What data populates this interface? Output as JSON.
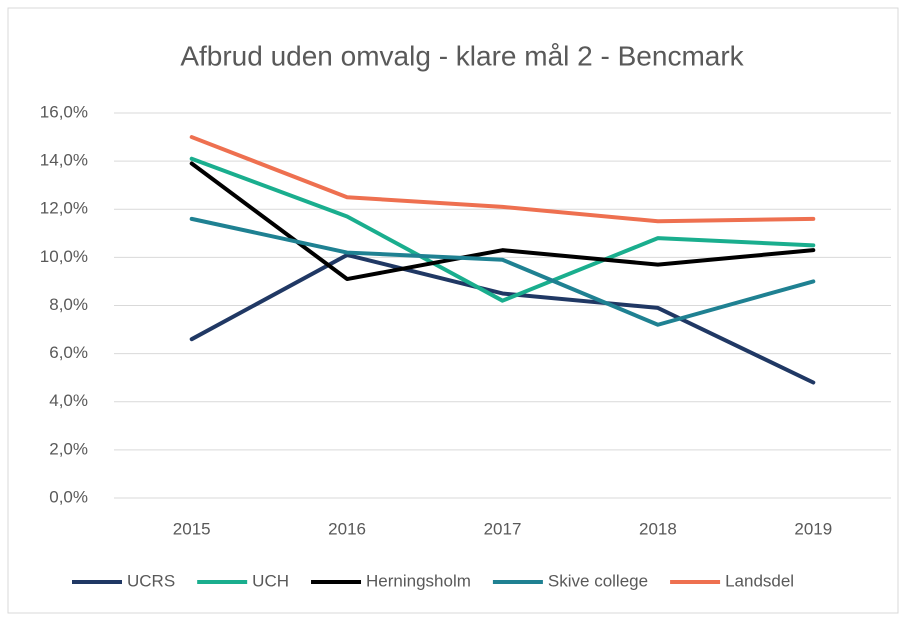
{
  "chart_data": {
    "type": "line",
    "title": "Afbrud uden omvalg - klare mål 2 - Bencmark",
    "categories": [
      "2015",
      "2016",
      "2017",
      "2018",
      "2019"
    ],
    "series": [
      {
        "name": "UCRS",
        "color": "#203864",
        "values": [
          6.6,
          10.1,
          8.5,
          7.9,
          4.8
        ]
      },
      {
        "name": "UCH",
        "color": "#1aae8e",
        "values": [
          14.1,
          11.7,
          8.2,
          10.8,
          10.5
        ]
      },
      {
        "name": "Herningsholm",
        "color": "#000000",
        "values": [
          13.9,
          9.1,
          10.3,
          9.7,
          10.3
        ]
      },
      {
        "name": "Skive college",
        "color": "#1f8192",
        "values": [
          11.6,
          10.2,
          9.9,
          7.2,
          9.0
        ]
      },
      {
        "name": "Landsdel",
        "color": "#ee7050",
        "values": [
          15.0,
          12.5,
          12.1,
          11.5,
          11.6
        ]
      }
    ],
    "ylim": [
      0,
      16
    ],
    "yticks": [
      {
        "value": 0,
        "label": "0,0%"
      },
      {
        "value": 2,
        "label": "2,0%"
      },
      {
        "value": 4,
        "label": "4,0%"
      },
      {
        "value": 6,
        "label": "6,0%"
      },
      {
        "value": 8,
        "label": "8,0%"
      },
      {
        "value": 10,
        "label": "10,0%"
      },
      {
        "value": 12,
        "label": "12,0%"
      },
      {
        "value": 14,
        "label": "14,0%"
      },
      {
        "value": 16,
        "label": "16,0%"
      }
    ],
    "grid": true,
    "legend": "bottom"
  }
}
